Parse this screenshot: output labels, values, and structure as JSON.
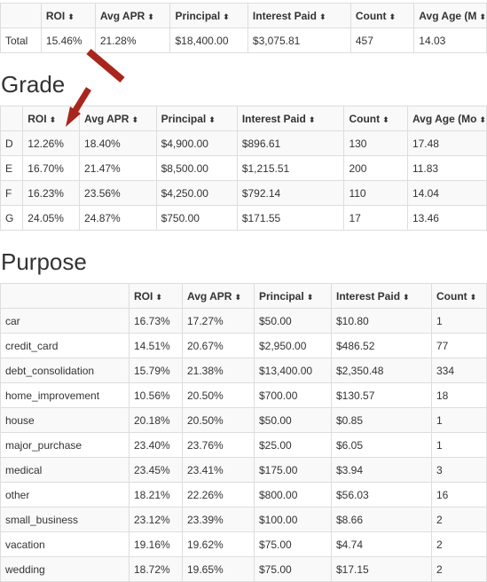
{
  "total_table": {
    "headers": [
      "",
      "ROI",
      "Avg APR",
      "Principal",
      "Interest Paid",
      "Count",
      "Avg Age (M"
    ],
    "row": [
      "Total",
      "15.46%",
      "21.28%",
      "$18,400.00",
      "$3,075.81",
      "457",
      "14.03"
    ]
  },
  "grade": {
    "heading": "Grade",
    "headers": [
      "",
      "ROI",
      "Avg APR",
      "Principal",
      "Interest Paid",
      "Count",
      "Avg Age (Mo"
    ],
    "rows": [
      [
        "D",
        "12.26%",
        "18.40%",
        "$4,900.00",
        "$896.61",
        "130",
        "17.48"
      ],
      [
        "E",
        "16.70%",
        "21.47%",
        "$8,500.00",
        "$1,215.51",
        "200",
        "11.83"
      ],
      [
        "F",
        "16.23%",
        "23.56%",
        "$4,250.00",
        "$792.14",
        "110",
        "14.04"
      ],
      [
        "G",
        "24.05%",
        "24.87%",
        "$750.00",
        "$171.55",
        "17",
        "13.46"
      ]
    ]
  },
  "purpose": {
    "heading": "Purpose",
    "headers": [
      "",
      "ROI",
      "Avg APR",
      "Principal",
      "Interest Paid",
      "Count"
    ],
    "rows": [
      [
        "car",
        "16.73%",
        "17.27%",
        "$50.00",
        "$10.80",
        "1"
      ],
      [
        "credit_card",
        "14.51%",
        "20.67%",
        "$2,950.00",
        "$486.52",
        "77"
      ],
      [
        "debt_consolidation",
        "15.79%",
        "21.38%",
        "$13,400.00",
        "$2,350.48",
        "334"
      ],
      [
        "home_improvement",
        "10.56%",
        "20.50%",
        "$700.00",
        "$130.57",
        "18"
      ],
      [
        "house",
        "20.18%",
        "20.50%",
        "$50.00",
        "$0.85",
        "1"
      ],
      [
        "major_purchase",
        "23.40%",
        "23.76%",
        "$25.00",
        "$6.05",
        "1"
      ],
      [
        "medical",
        "23.45%",
        "23.41%",
        "$175.00",
        "$3.94",
        "3"
      ],
      [
        "other",
        "18.21%",
        "22.26%",
        "$800.00",
        "$56.03",
        "16"
      ],
      [
        "small_business",
        "23.12%",
        "23.39%",
        "$100.00",
        "$8.66",
        "2"
      ],
      [
        "vacation",
        "19.16%",
        "19.62%",
        "$75.00",
        "$4.74",
        "2"
      ],
      [
        "wedding",
        "18.72%",
        "19.65%",
        "$75.00",
        "$17.15",
        "2"
      ]
    ]
  },
  "sort_icon_glyph": "⬍",
  "annotation_arrow_color": "#a8261c"
}
